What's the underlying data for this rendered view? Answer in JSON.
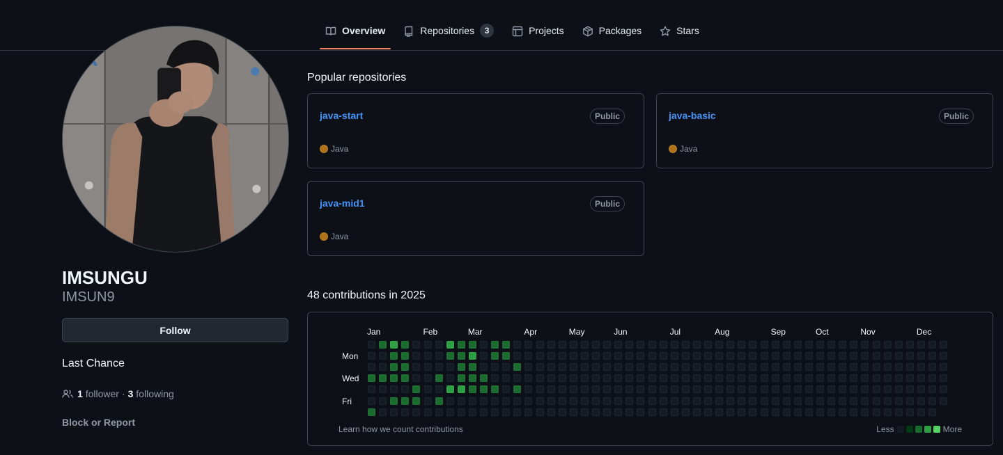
{
  "nav": {
    "tabs": [
      {
        "label": "Overview",
        "icon": "book-icon",
        "selected": true
      },
      {
        "label": "Repositories",
        "icon": "repo-icon",
        "counter": "3"
      },
      {
        "label": "Projects",
        "icon": "table-icon"
      },
      {
        "label": "Packages",
        "icon": "package-icon"
      },
      {
        "label": "Stars",
        "icon": "star-icon"
      }
    ]
  },
  "profile": {
    "name": "IMSUNGU",
    "login": "IMSUN9",
    "follow_label": "Follow",
    "bio": "Last Chance",
    "followers_count": "1",
    "followers_label": "follower",
    "separator": "·",
    "following_count": "3",
    "following_label": "following",
    "block_label": "Block or Report"
  },
  "popular": {
    "title": "Popular repositories",
    "repos": [
      {
        "name": "java-start",
        "visibility": "Public",
        "language": "Java",
        "language_color": "#b07219"
      },
      {
        "name": "java-basic",
        "visibility": "Public",
        "language": "Java",
        "language_color": "#b07219"
      },
      {
        "name": "java-mid1",
        "visibility": "Public",
        "language": "Java",
        "language_color": "#b07219"
      }
    ]
  },
  "contributions": {
    "title": "48 contributions in 2025",
    "months": [
      "Jan",
      "Feb",
      "Mar",
      "Apr",
      "May",
      "Jun",
      "Jul",
      "Aug",
      "Sep",
      "Oct",
      "Nov",
      "Dec"
    ],
    "day_labels": [
      "Mon",
      "Wed",
      "Fri"
    ],
    "learn_label": "Learn how we count contributions",
    "legend_less": "Less",
    "legend_more": "More",
    "level_colors": [
      "#151b23",
      "#033a16",
      "#196c2e",
      "#2ea043",
      "#56d364"
    ],
    "weeks": [
      [
        0,
        0,
        0,
        2,
        0,
        0,
        2
      ],
      [
        2,
        0,
        0,
        2,
        0,
        0,
        0
      ],
      [
        3,
        2,
        2,
        2,
        0,
        2,
        0
      ],
      [
        2,
        2,
        2,
        2,
        0,
        2,
        0
      ],
      [
        0,
        0,
        0,
        0,
        2,
        2,
        0
      ],
      [
        0,
        0,
        0,
        0,
        0,
        0,
        0
      ],
      [
        0,
        0,
        0,
        2,
        0,
        2,
        0
      ],
      [
        3,
        2,
        0,
        0,
        3,
        0,
        0
      ],
      [
        2,
        2,
        2,
        2,
        3,
        0,
        0
      ],
      [
        2,
        3,
        2,
        2,
        2,
        0,
        0
      ],
      [
        0,
        0,
        0,
        2,
        2,
        0,
        0
      ],
      [
        2,
        2,
        0,
        0,
        2,
        0,
        0
      ],
      [
        2,
        2,
        0,
        0,
        0,
        0,
        0
      ],
      [
        0,
        0,
        2,
        0,
        2,
        0,
        0
      ],
      [
        0,
        0,
        0,
        0,
        0,
        0,
        0
      ],
      [
        0,
        0,
        0,
        0,
        0,
        0,
        0
      ],
      [
        0,
        0,
        0,
        0,
        0,
        0,
        0
      ],
      [
        0,
        0,
        0,
        0,
        0,
        0,
        0
      ],
      [
        0,
        0,
        0,
        0,
        0,
        0,
        0
      ],
      [
        0,
        0,
        0,
        0,
        0,
        0,
        0
      ],
      [
        0,
        0,
        0,
        0,
        0,
        0,
        0
      ],
      [
        0,
        0,
        0,
        0,
        0,
        0,
        0
      ],
      [
        0,
        0,
        0,
        0,
        0,
        0,
        0
      ],
      [
        0,
        0,
        0,
        0,
        0,
        0,
        0
      ],
      [
        0,
        0,
        0,
        0,
        0,
        0,
        0
      ],
      [
        0,
        0,
        0,
        0,
        0,
        0,
        0
      ],
      [
        0,
        0,
        0,
        0,
        0,
        0,
        0
      ],
      [
        0,
        0,
        0,
        0,
        0,
        0,
        0
      ],
      [
        0,
        0,
        0,
        0,
        0,
        0,
        0
      ],
      [
        0,
        0,
        0,
        0,
        0,
        0,
        0
      ],
      [
        0,
        0,
        0,
        0,
        0,
        0,
        0
      ],
      [
        0,
        0,
        0,
        0,
        0,
        0,
        0
      ],
      [
        0,
        0,
        0,
        0,
        0,
        0,
        0
      ],
      [
        0,
        0,
        0,
        0,
        0,
        0,
        0
      ],
      [
        0,
        0,
        0,
        0,
        0,
        0,
        0
      ],
      [
        0,
        0,
        0,
        0,
        0,
        0,
        0
      ],
      [
        0,
        0,
        0,
        0,
        0,
        0,
        0
      ],
      [
        0,
        0,
        0,
        0,
        0,
        0,
        0
      ],
      [
        0,
        0,
        0,
        0,
        0,
        0,
        0
      ],
      [
        0,
        0,
        0,
        0,
        0,
        0,
        0
      ],
      [
        0,
        0,
        0,
        0,
        0,
        0,
        0
      ],
      [
        0,
        0,
        0,
        0,
        0,
        0,
        0
      ],
      [
        0,
        0,
        0,
        0,
        0,
        0,
        0
      ],
      [
        0,
        0,
        0,
        0,
        0,
        0,
        0
      ],
      [
        0,
        0,
        0,
        0,
        0,
        0,
        0
      ],
      [
        0,
        0,
        0,
        0,
        0,
        0,
        0
      ],
      [
        0,
        0,
        0,
        0,
        0,
        0,
        0
      ],
      [
        0,
        0,
        0,
        0,
        0,
        0,
        0
      ],
      [
        0,
        0,
        0,
        0,
        0,
        0,
        0
      ],
      [
        0,
        0,
        0,
        0,
        0,
        0,
        0
      ],
      [
        0,
        0,
        0,
        0,
        0,
        0,
        0
      ],
      [
        0,
        0,
        0,
        0,
        0,
        0
      ]
    ]
  }
}
